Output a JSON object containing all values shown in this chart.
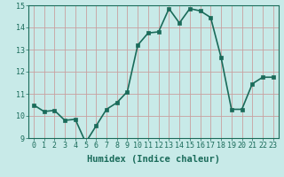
{
  "x": [
    0,
    1,
    2,
    3,
    4,
    5,
    6,
    7,
    8,
    9,
    10,
    11,
    12,
    13,
    14,
    15,
    16,
    17,
    18,
    19,
    20,
    21,
    22,
    23
  ],
  "y": [
    10.5,
    10.2,
    10.25,
    9.8,
    9.85,
    8.8,
    9.55,
    10.3,
    10.6,
    11.1,
    13.2,
    13.75,
    13.8,
    14.85,
    14.2,
    14.85,
    14.75,
    14.45,
    12.65,
    10.3,
    10.3,
    11.45,
    11.75,
    11.75
  ],
  "line_color": "#1a6b5a",
  "marker_color": "#1a6b5a",
  "bg_color": "#c8eae8",
  "grid_color": "#c8a0a0",
  "xlabel": "Humidex (Indice chaleur)",
  "xlabel_fontsize": 7.5,
  "ylim": [
    9,
    15
  ],
  "xlim": [
    -0.5,
    23.5
  ],
  "yticks": [
    9,
    10,
    11,
    12,
    13,
    14,
    15
  ],
  "xticks": [
    0,
    1,
    2,
    3,
    4,
    5,
    6,
    7,
    8,
    9,
    10,
    11,
    12,
    13,
    14,
    15,
    16,
    17,
    18,
    19,
    20,
    21,
    22,
    23
  ],
  "tick_fontsize": 6,
  "linewidth": 1.2,
  "markersize": 2.5
}
